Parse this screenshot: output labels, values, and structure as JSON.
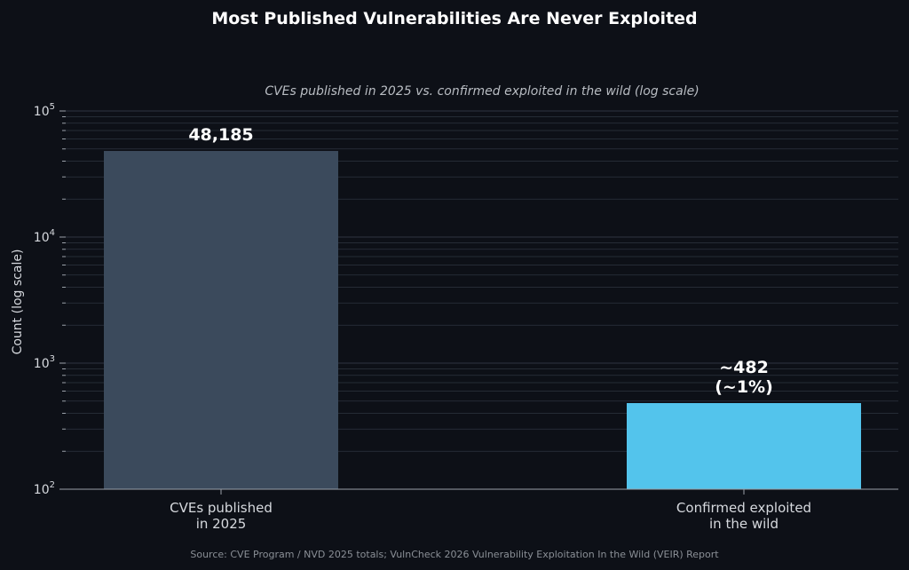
{
  "colors": {
    "background": "#0d1017",
    "grid": "#2e3440",
    "axis": "#9aa0a8",
    "text": "#d6d9de",
    "title": "#ffffff",
    "muted": "#8a8f96",
    "bar_published": "#3b4a5c",
    "bar_exploited": "#53c4ec"
  },
  "chart_data": {
    "type": "bar",
    "title": "Most Published Vulnerabilities Are Never Exploited",
    "subtitle": "CVEs published in 2025 vs. confirmed exploited in the wild (log scale)",
    "ylabel": "Count (log scale)",
    "xlabel": "",
    "yscale": "log",
    "ylim": [
      100,
      100000
    ],
    "grid": true,
    "categories": [
      [
        "CVEs published",
        "in 2025"
      ],
      [
        "Confirmed exploited",
        "in the wild"
      ]
    ],
    "values": [
      48185,
      482
    ],
    "data_labels": [
      [
        "48,185"
      ],
      [
        "~482",
        "(~1%)"
      ]
    ],
    "yticks": [
      {
        "base": "10",
        "exp": "2",
        "value": 100
      },
      {
        "base": "10",
        "exp": "3",
        "value": 1000
      },
      {
        "base": "10",
        "exp": "4",
        "value": 10000
      },
      {
        "base": "10",
        "exp": "5",
        "value": 100000
      }
    ],
    "source": "Source: CVE Program / NVD 2025 totals; VulnCheck 2026 Vulnerability Exploitation In the Wild (VEIR) Report"
  }
}
